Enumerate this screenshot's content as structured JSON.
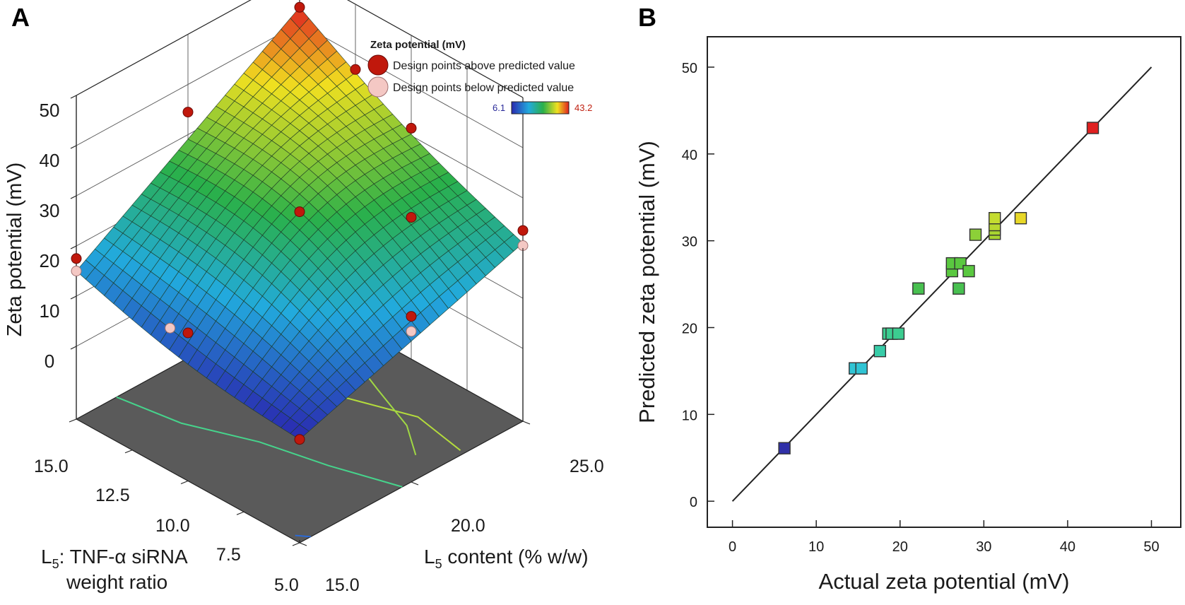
{
  "panels": {
    "a_label": "A",
    "b_label": "B"
  },
  "chart_data": [
    {
      "type": "surface",
      "panel": "A",
      "zlabel": "Zeta potential (mV)",
      "xlabel_sub": "5",
      "xlabel_prefix": "L",
      "xlabel_suffix": ": TNF-α siRNA",
      "xlabel_line2": "weight ratio",
      "ylabel_prefix": "L",
      "ylabel_sub": "5",
      "ylabel_suffix": " content (% w/w)",
      "x_range": [
        5.0,
        15.0
      ],
      "x_ticks": [
        "15.0",
        "12.5",
        "10.0",
        "7.5",
        "5.0"
      ],
      "y_range": [
        15.0,
        25.0
      ],
      "y_ticks": [
        "15.0",
        "20.0",
        "25.0"
      ],
      "z_range": [
        0,
        50
      ],
      "z_ticks": [
        "0",
        "10",
        "20",
        "30",
        "40",
        "50"
      ],
      "grid": true,
      "colorscale_min": "6.1",
      "colorscale_max": "43.2",
      "colorscale_colors": [
        "#2a2ab0",
        "#22aadd",
        "#2ab04a",
        "#f0e020",
        "#e02020"
      ],
      "legend": {
        "title": "Zeta potential (mV)",
        "placement": "top-right",
        "above_label": "Design points above predicted value",
        "below_label": "Design points below predicted value",
        "above_color": "#c0180c",
        "below_color": "#f4c8c4"
      },
      "surface_corners": {
        "x5_y15": 6.1,
        "x15_y15": 15.0,
        "x5_y25": 21.0,
        "x15_y25": 43.2
      },
      "design_points": [
        {
          "x": 15.0,
          "y": 25.0,
          "z": 43.2,
          "kind": "above"
        },
        {
          "x": 5.0,
          "y": 15.0,
          "z": 6.1,
          "kind": "above"
        },
        {
          "x": 15.0,
          "y": 15.0,
          "z": 17.5,
          "kind": "above"
        },
        {
          "x": 15.0,
          "y": 15.0,
          "z": 15.0,
          "kind": "below"
        },
        {
          "x": 5.0,
          "y": 25.0,
          "z": 23.5,
          "kind": "above"
        },
        {
          "x": 5.0,
          "y": 25.0,
          "z": 20.5,
          "kind": "below"
        },
        {
          "x": 15.0,
          "y": 20.0,
          "z": 34.5,
          "kind": "above"
        },
        {
          "x": 10.0,
          "y": 25.0,
          "z": 31.5,
          "kind": "above"
        },
        {
          "x": 10.0,
          "y": 15.0,
          "z": 15.0,
          "kind": "above"
        },
        {
          "x": 5.0,
          "y": 20.0,
          "z": 18.5,
          "kind": "above"
        },
        {
          "x": 5.0,
          "y": 20.0,
          "z": 15.5,
          "kind": "below"
        },
        {
          "x": 10.0,
          "y": 20.0,
          "z": 27.0,
          "kind": "above"
        },
        {
          "x": 7.5,
          "y": 22.5,
          "z": 26.0,
          "kind": "above"
        },
        {
          "x": 12.5,
          "y": 25.0,
          "z": 37.0,
          "kind": "above"
        },
        {
          "x": 11.0,
          "y": 15.2,
          "z": 13.0,
          "kind": "below"
        }
      ]
    },
    {
      "type": "scatter",
      "panel": "B",
      "xlabel": "Actual zeta potential (mV)",
      "ylabel": "Predicted zeta potential (mV)",
      "xlim": [
        -3,
        53.5
      ],
      "ylim": [
        -3,
        53.5
      ],
      "x_ticks": [
        "0",
        "10",
        "20",
        "30",
        "40",
        "50"
      ],
      "y_ticks": [
        "0",
        "10",
        "20",
        "30",
        "40",
        "50"
      ],
      "reference_line": {
        "from": [
          0,
          0
        ],
        "to": [
          50,
          50
        ],
        "color": "#222222"
      },
      "points": [
        {
          "x": 6.2,
          "y": 6.1,
          "color": "#3030a8"
        },
        {
          "x": 14.6,
          "y": 15.3,
          "color": "#30c4d4"
        },
        {
          "x": 15.4,
          "y": 15.3,
          "color": "#30c4d4"
        },
        {
          "x": 17.6,
          "y": 17.3,
          "color": "#38cca8"
        },
        {
          "x": 18.6,
          "y": 19.3,
          "color": "#3ccc90"
        },
        {
          "x": 19.0,
          "y": 19.3,
          "color": "#3ccc90"
        },
        {
          "x": 19.8,
          "y": 19.3,
          "color": "#3ccc90"
        },
        {
          "x": 22.2,
          "y": 24.5,
          "color": "#48c050"
        },
        {
          "x": 26.2,
          "y": 26.5,
          "color": "#5ac840"
        },
        {
          "x": 26.2,
          "y": 27.4,
          "color": "#5ac840"
        },
        {
          "x": 27.0,
          "y": 24.5,
          "color": "#48c050"
        },
        {
          "x": 27.2,
          "y": 27.4,
          "color": "#5ac840"
        },
        {
          "x": 28.2,
          "y": 26.5,
          "color": "#5ac840"
        },
        {
          "x": 29.0,
          "y": 30.7,
          "color": "#8cd038"
        },
        {
          "x": 31.3,
          "y": 30.8,
          "color": "#a8d430"
        },
        {
          "x": 31.3,
          "y": 31.3,
          "color": "#a8d430"
        },
        {
          "x": 31.3,
          "y": 31.8,
          "color": "#b8d830"
        },
        {
          "x": 31.3,
          "y": 32.6,
          "color": "#c4dc30"
        },
        {
          "x": 34.4,
          "y": 32.6,
          "color": "#e8d828"
        },
        {
          "x": 43.0,
          "y": 43.0,
          "color": "#e02020"
        }
      ]
    }
  ]
}
